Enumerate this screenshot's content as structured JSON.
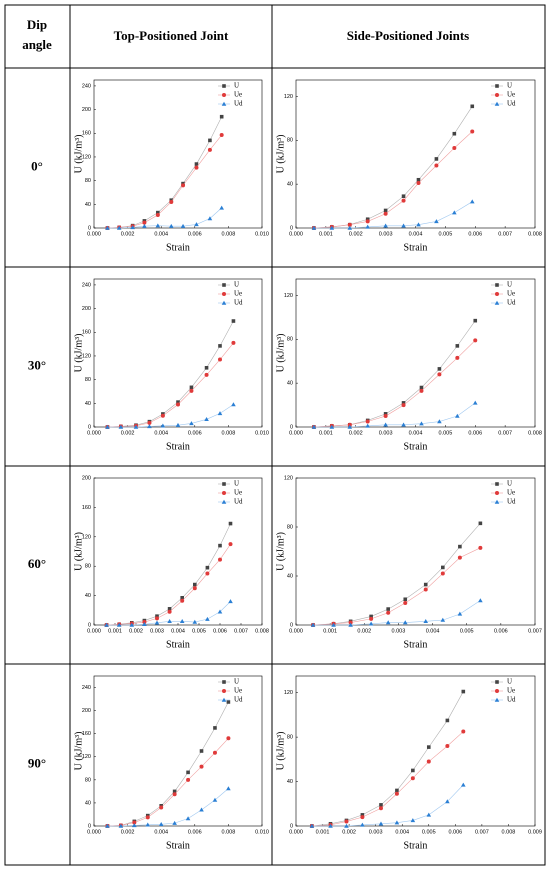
{
  "table": {
    "header": [
      [
        "Dip",
        "angle"
      ],
      "Top-Positioned Joint",
      "Side-Positioned Joints"
    ],
    "rows": [
      "0°",
      "30°",
      "60°",
      "90°"
    ]
  },
  "chart_data": [
    {
      "type": "line",
      "xlabel": "Strain",
      "ylabel": "U (kJ/m³)",
      "x": [
        0.0008,
        0.0015,
        0.0023,
        0.003,
        0.0038,
        0.0046,
        0.0053,
        0.0061,
        0.0069,
        0.0076
      ],
      "series": [
        {
          "name": "U",
          "color": "#444444",
          "values": [
            0,
            1,
            4,
            12,
            26,
            47,
            75,
            108,
            148,
            188
          ]
        },
        {
          "name": "Ue",
          "color": "#e03a3a",
          "values": [
            0,
            1,
            3,
            9,
            22,
            44,
            72,
            102,
            132,
            157
          ]
        },
        {
          "name": "Ud",
          "color": "#2a7fd4",
          "values": [
            0,
            0,
            1,
            3,
            4,
            3,
            3,
            6,
            16,
            34
          ]
        }
      ],
      "xlim": [
        0,
        0.01
      ],
      "xticks": [
        {
          "value": 0,
          "label": "0.000"
        },
        {
          "value": 0.002,
          "label": "0.002"
        },
        {
          "value": 0.004,
          "label": "0.004"
        },
        {
          "value": 0.006,
          "label": "0.006"
        },
        {
          "value": 0.008,
          "label": "0.008"
        },
        {
          "value": 0.01,
          "label": "0.010"
        }
      ],
      "ylim": [
        0,
        250
      ],
      "yticks": [
        0,
        40,
        80,
        120,
        160,
        200,
        240
      ],
      "legend": "upper right"
    },
    {
      "type": "line",
      "xlabel": "Strain",
      "ylabel": "U (kJ/m³)",
      "x": [
        0.0006,
        0.0012,
        0.0018,
        0.0024,
        0.003,
        0.0036,
        0.0041,
        0.0047,
        0.0053,
        0.0059
      ],
      "series": [
        {
          "name": "U",
          "color": "#444444",
          "values": [
            0,
            1,
            3,
            8,
            16,
            29,
            44,
            63,
            86,
            111
          ]
        },
        {
          "name": "Ue",
          "color": "#e03a3a",
          "values": [
            0,
            1,
            3,
            6,
            13,
            25,
            41,
            57,
            73,
            88
          ]
        },
        {
          "name": "Ud",
          "color": "#2a7fd4",
          "values": [
            0,
            0,
            0,
            1,
            2,
            2,
            3,
            6,
            14,
            24
          ]
        }
      ],
      "xlim": [
        0,
        0.008
      ],
      "xticks": [
        {
          "value": 0,
          "label": "0.000"
        },
        {
          "value": 0.001,
          "label": "0.001"
        },
        {
          "value": 0.002,
          "label": "0.002"
        },
        {
          "value": 0.003,
          "label": "0.003"
        },
        {
          "value": 0.004,
          "label": "0.004"
        },
        {
          "value": 0.005,
          "label": "0.005"
        },
        {
          "value": 0.006,
          "label": "0.006"
        },
        {
          "value": 0.007,
          "label": "0.007"
        },
        {
          "value": 0.008,
          "label": "0.008"
        }
      ],
      "ylim": [
        0,
        135
      ],
      "yticks": [
        0,
        40,
        80,
        120
      ],
      "legend": "upper right"
    },
    {
      "type": "line",
      "xlabel": "Strain",
      "ylabel": "U (kJ/m³)",
      "x": [
        0.0008,
        0.0016,
        0.0025,
        0.0033,
        0.0041,
        0.005,
        0.0058,
        0.0067,
        0.0075,
        0.0083
      ],
      "series": [
        {
          "name": "U",
          "color": "#444444",
          "values": [
            0,
            1,
            3,
            9,
            22,
            42,
            67,
            100,
            137,
            179
          ]
        },
        {
          "name": "Ue",
          "color": "#e03a3a",
          "values": [
            0,
            1,
            2,
            7,
            19,
            38,
            61,
            88,
            114,
            142
          ]
        },
        {
          "name": "Ud",
          "color": "#2a7fd4",
          "values": [
            0,
            0,
            0,
            1,
            2,
            3,
            6,
            13,
            23,
            38
          ]
        }
      ],
      "xlim": [
        0,
        0.01
      ],
      "xticks": [
        {
          "value": 0,
          "label": "0.000"
        },
        {
          "value": 0.002,
          "label": "0.002"
        },
        {
          "value": 0.004,
          "label": "0.004"
        },
        {
          "value": 0.006,
          "label": "0.006"
        },
        {
          "value": 0.008,
          "label": "0.008"
        },
        {
          "value": 0.01,
          "label": "0.010"
        }
      ],
      "ylim": [
        0,
        250
      ],
      "yticks": [
        0,
        40,
        80,
        120,
        160,
        200,
        240
      ],
      "legend": "upper right"
    },
    {
      "type": "line",
      "xlabel": "Strain",
      "ylabel": "U (kJ/m³)",
      "x": [
        0.0006,
        0.0012,
        0.0018,
        0.0024,
        0.003,
        0.0036,
        0.0042,
        0.0048,
        0.0054,
        0.006
      ],
      "series": [
        {
          "name": "U",
          "color": "#444444",
          "values": [
            0,
            1,
            2,
            6,
            12,
            22,
            36,
            53,
            74,
            97
          ]
        },
        {
          "name": "Ue",
          "color": "#e03a3a",
          "values": [
            0,
            1,
            2,
            5,
            10,
            20,
            33,
            48,
            63,
            79
          ]
        },
        {
          "name": "Ud",
          "color": "#2a7fd4",
          "values": [
            0,
            0,
            0,
            1,
            2,
            2,
            3,
            5,
            10,
            22
          ]
        }
      ],
      "xlim": [
        0,
        0.008
      ],
      "xticks": [
        {
          "value": 0,
          "label": "0.000"
        },
        {
          "value": 0.001,
          "label": "0.001"
        },
        {
          "value": 0.002,
          "label": "0.002"
        },
        {
          "value": 0.003,
          "label": "0.003"
        },
        {
          "value": 0.004,
          "label": "0.004"
        },
        {
          "value": 0.005,
          "label": "0.005"
        },
        {
          "value": 0.006,
          "label": "0.006"
        },
        {
          "value": 0.007,
          "label": "0.007"
        },
        {
          "value": 0.008,
          "label": "0.008"
        }
      ],
      "ylim": [
        0,
        135
      ],
      "yticks": [
        0,
        40,
        80,
        120
      ],
      "legend": "upper right"
    },
    {
      "type": "line",
      "xlabel": "Strain",
      "ylabel": "U (kJ/m³)",
      "x": [
        0.0006,
        0.0012,
        0.0018,
        0.0024,
        0.003,
        0.0036,
        0.0042,
        0.0048,
        0.0054,
        0.006,
        0.0065
      ],
      "series": [
        {
          "name": "U",
          "color": "#444444",
          "values": [
            0,
            1,
            3,
            6,
            12,
            22,
            37,
            55,
            78,
            108,
            138
          ]
        },
        {
          "name": "Ue",
          "color": "#e03a3a",
          "values": [
            0,
            1,
            2,
            4,
            9,
            18,
            33,
            50,
            70,
            89,
            110
          ]
        },
        {
          "name": "Ud",
          "color": "#2a7fd4",
          "values": [
            0,
            0,
            0,
            1,
            3,
            5,
            5,
            4,
            8,
            18,
            32
          ]
        }
      ],
      "xlim": [
        0,
        0.008
      ],
      "xticks": [
        {
          "value": 0,
          "label": "0.000"
        },
        {
          "value": 0.001,
          "label": "0.001"
        },
        {
          "value": 0.002,
          "label": "0.002"
        },
        {
          "value": 0.003,
          "label": "0.003"
        },
        {
          "value": 0.004,
          "label": "0.004"
        },
        {
          "value": 0.005,
          "label": "0.005"
        },
        {
          "value": 0.006,
          "label": "0.006"
        },
        {
          "value": 0.007,
          "label": "0.007"
        },
        {
          "value": 0.008,
          "label": "0.008"
        }
      ],
      "ylim": [
        0,
        200
      ],
      "yticks": [
        0,
        40,
        80,
        120,
        160,
        200
      ],
      "legend": "upper right"
    },
    {
      "type": "line",
      "xlabel": "Strain",
      "ylabel": "U (kJ/m³)",
      "x": [
        0.0005,
        0.0011,
        0.0016,
        0.0022,
        0.0027,
        0.0032,
        0.0038,
        0.0043,
        0.0048,
        0.0054
      ],
      "series": [
        {
          "name": "U",
          "color": "#444444",
          "values": [
            0,
            1,
            3,
            7,
            13,
            21,
            33,
            47,
            64,
            83
          ]
        },
        {
          "name": "Ue",
          "color": "#e03a3a",
          "values": [
            0,
            1,
            2,
            5,
            10,
            18,
            29,
            42,
            55,
            63
          ]
        },
        {
          "name": "Ud",
          "color": "#2a7fd4",
          "values": [
            0,
            0,
            0,
            1,
            2,
            2,
            3,
            4,
            9,
            20
          ]
        }
      ],
      "xlim": [
        0,
        0.007
      ],
      "xticks": [
        {
          "value": 0,
          "label": "0.000"
        },
        {
          "value": 0.001,
          "label": "0.001"
        },
        {
          "value": 0.002,
          "label": "0.002"
        },
        {
          "value": 0.003,
          "label": "0.003"
        },
        {
          "value": 0.004,
          "label": "0.004"
        },
        {
          "value": 0.005,
          "label": "0.005"
        },
        {
          "value": 0.006,
          "label": "0.006"
        },
        {
          "value": 0.007,
          "label": "0.007"
        }
      ],
      "ylim": [
        0,
        120
      ],
      "yticks": [
        0,
        40,
        80,
        120
      ],
      "legend": "upper right"
    },
    {
      "type": "line",
      "xlabel": "Strain",
      "ylabel": "U (kJ/m³)",
      "x": [
        0.0008,
        0.0016,
        0.0024,
        0.0032,
        0.004,
        0.0048,
        0.0056,
        0.0064,
        0.0072,
        0.008
      ],
      "series": [
        {
          "name": "U",
          "color": "#444444",
          "values": [
            0,
            1,
            8,
            18,
            35,
            60,
            93,
            130,
            170,
            215
          ]
        },
        {
          "name": "Ue",
          "color": "#e03a3a",
          "values": [
            0,
            1,
            6,
            15,
            32,
            55,
            80,
            103,
            127,
            152
          ]
        },
        {
          "name": "Ud",
          "color": "#2a7fd4",
          "values": [
            0,
            0,
            1,
            2,
            3,
            5,
            13,
            28,
            45,
            65
          ]
        }
      ],
      "xlim": [
        0,
        0.01
      ],
      "xticks": [
        {
          "value": 0,
          "label": "0.000"
        },
        {
          "value": 0.002,
          "label": "0.002"
        },
        {
          "value": 0.004,
          "label": "0.004"
        },
        {
          "value": 0.006,
          "label": "0.006"
        },
        {
          "value": 0.008,
          "label": "0.008"
        },
        {
          "value": 0.01,
          "label": "0.010"
        }
      ],
      "ylim": [
        0,
        260
      ],
      "yticks": [
        0,
        40,
        80,
        120,
        160,
        200,
        240
      ],
      "legend": "upper right"
    },
    {
      "type": "line",
      "xlabel": "Strain",
      "ylabel": "U (kJ/m³)",
      "x": [
        0.0006,
        0.0013,
        0.0019,
        0.0025,
        0.0032,
        0.0038,
        0.0044,
        0.005,
        0.0057,
        0.0063
      ],
      "series": [
        {
          "name": "U",
          "color": "#444444",
          "values": [
            0,
            2,
            5,
            10,
            19,
            32,
            50,
            71,
            95,
            121
          ]
        },
        {
          "name": "Ue",
          "color": "#e03a3a",
          "values": [
            0,
            1,
            4,
            8,
            16,
            29,
            43,
            58,
            72,
            85
          ]
        },
        {
          "name": "Ud",
          "color": "#2a7fd4",
          "values": [
            0,
            0,
            0,
            1,
            2,
            3,
            5,
            10,
            22,
            37
          ]
        }
      ],
      "xlim": [
        0,
        0.009
      ],
      "xticks": [
        {
          "value": 0,
          "label": "0.000"
        },
        {
          "value": 0.001,
          "label": "0.001"
        },
        {
          "value": 0.002,
          "label": "0.002"
        },
        {
          "value": 0.003,
          "label": "0.003"
        },
        {
          "value": 0.004,
          "label": "0.004"
        },
        {
          "value": 0.005,
          "label": "0.005"
        },
        {
          "value": 0.006,
          "label": "0.006"
        },
        {
          "value": 0.007,
          "label": "0.007"
        },
        {
          "value": 0.008,
          "label": "0.008"
        },
        {
          "value": 0.009,
          "label": "0.009"
        }
      ],
      "ylim": [
        0,
        135
      ],
      "yticks": [
        0,
        40,
        80,
        120
      ],
      "legend": "upper right"
    }
  ]
}
